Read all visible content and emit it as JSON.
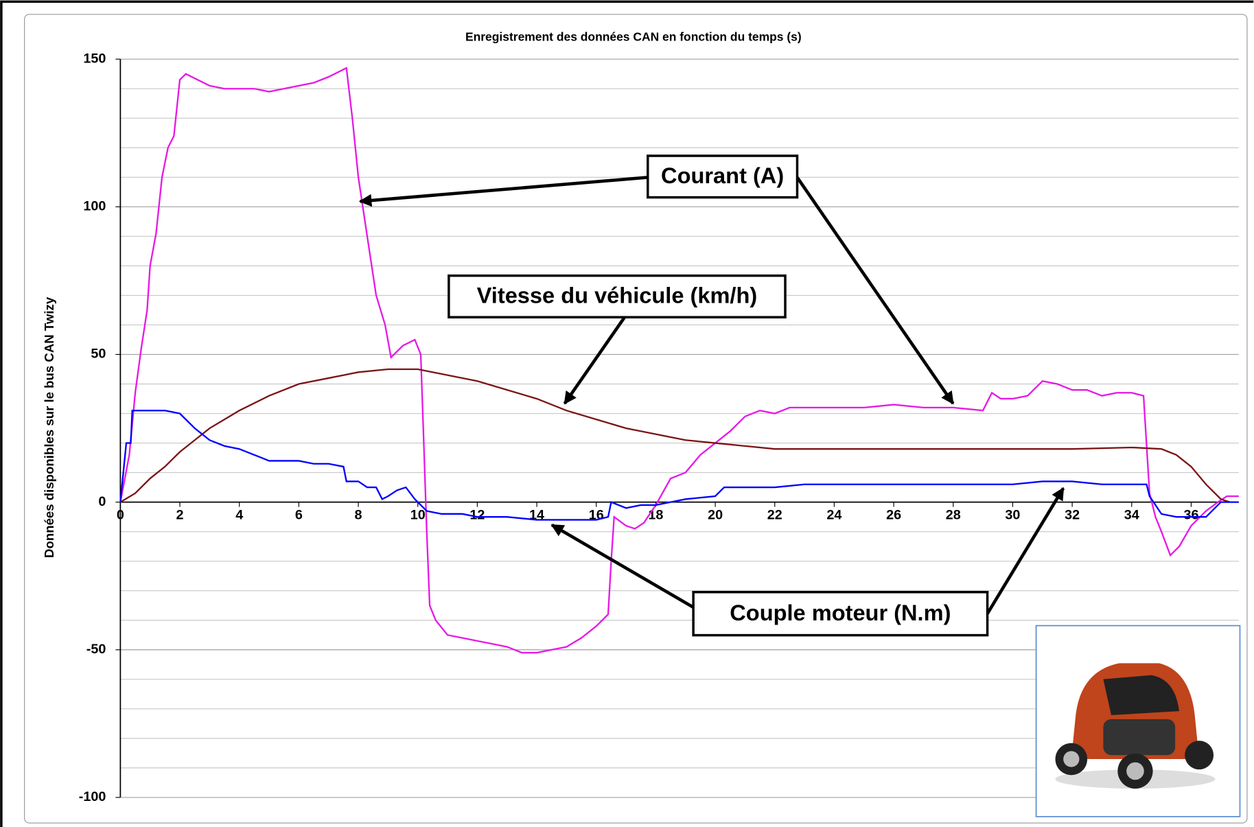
{
  "chart_data": {
    "type": "line",
    "title": "Enregistrement des données CAN en fonction du temps (s)",
    "ylabel": "Données disponibles sur le bus CAN Twizy",
    "xlim": [
      0,
      37.6
    ],
    "ylim": [
      -100,
      150
    ],
    "xticks": [
      0,
      2,
      4,
      6,
      8,
      10,
      12,
      14,
      16,
      18,
      20,
      22,
      24,
      26,
      28,
      30,
      32,
      34,
      36
    ],
    "yticks": [
      -100,
      -50,
      0,
      50,
      100,
      150
    ],
    "minor_yticks": [
      -90,
      -80,
      -70,
      -60,
      -40,
      -30,
      -20,
      -10,
      10,
      20,
      30,
      40,
      60,
      70,
      80,
      90,
      110,
      120,
      130,
      140
    ],
    "grid": true,
    "series": [
      {
        "color": "#e619e6",
        "x": [
          0,
          0.3,
          0.5,
          0.7,
          0.9,
          1.0,
          1.2,
          1.4,
          1.6,
          1.8,
          2.0,
          2.2,
          2.6,
          3.0,
          3.5,
          4,
          4.5,
          5,
          5.5,
          6,
          6.5,
          7,
          7.6,
          7.8,
          8,
          8.3,
          8.6,
          8.9,
          9.1,
          9.5,
          9.9,
          10.1,
          10.2,
          10.3,
          10.4,
          10.6,
          11,
          11.5,
          12,
          12.5,
          13,
          13.5,
          14,
          14.5,
          15,
          15.5,
          16,
          16.4,
          16.5,
          16.6,
          17,
          17.3,
          17.6,
          18,
          18.5,
          19,
          19.5,
          20,
          20.5,
          21,
          21.5,
          22,
          22.5,
          23,
          24,
          25,
          26,
          27,
          28,
          29,
          29.3,
          29.6,
          30,
          30.5,
          31,
          31.5,
          32,
          32.5,
          33,
          33.5,
          34,
          34.4,
          34.6,
          34.8,
          35,
          35.3,
          35.6,
          36,
          36.5,
          36.9,
          37.2,
          37.6
        ],
        "values": [
          0,
          16,
          37,
          52,
          65,
          80,
          91,
          110,
          120,
          124,
          143,
          145,
          143,
          141,
          140,
          140,
          140,
          139,
          140,
          141,
          142,
          144,
          147,
          130,
          110,
          90,
          70,
          60,
          49,
          53,
          55,
          50,
          20,
          -10,
          -35,
          -40,
          -45,
          -46,
          -47,
          -48,
          -49,
          -51,
          -51,
          -50,
          -49,
          -46,
          -42,
          -38,
          -20,
          -5,
          -8,
          -9,
          -7,
          -1,
          8,
          10,
          16,
          20,
          24,
          29,
          31,
          30,
          32,
          32,
          32,
          32,
          33,
          32,
          32,
          31,
          37,
          35,
          35,
          36,
          41,
          40,
          38,
          38,
          36,
          37,
          37,
          36,
          3,
          -5,
          -10,
          -18,
          -15,
          -8,
          -3,
          0,
          2,
          2
        ]
      },
      {
        "color": "#7b1414",
        "x": [
          0,
          0.5,
          1,
          1.5,
          2,
          2.5,
          3,
          4,
          5,
          6,
          7,
          8,
          9,
          10,
          11,
          12,
          13,
          14,
          15,
          16,
          17,
          18,
          19,
          20,
          21,
          22,
          24,
          26,
          28,
          30,
          32,
          34,
          35,
          35.5,
          36,
          36.5,
          37,
          37.3
        ],
        "values": [
          0,
          3,
          8,
          12,
          17,
          21,
          25,
          31,
          36,
          40,
          42,
          44,
          45,
          45,
          43,
          41,
          38,
          35,
          31,
          28,
          25,
          23,
          21,
          20,
          19,
          18,
          18,
          18,
          18,
          18,
          18,
          18.5,
          18,
          16,
          12,
          6,
          1,
          0
        ]
      },
      {
        "color": "#0000ff",
        "x": [
          0,
          0.2,
          0.35,
          0.4,
          1,
          1.5,
          2,
          2.5,
          3,
          3.5,
          4,
          4.5,
          5,
          6,
          6.5,
          7,
          7.5,
          7.6,
          8,
          8.3,
          8.6,
          8.8,
          9,
          9.3,
          9.6,
          9.9,
          10,
          10.3,
          10.8,
          11.5,
          12,
          13,
          14,
          15,
          16,
          16.4,
          16.5,
          17,
          17.5,
          18,
          18.5,
          19,
          20,
          20.3,
          21,
          22,
          23,
          24,
          25,
          26,
          27,
          28,
          29,
          30,
          31,
          32,
          33,
          34,
          34.5,
          34.6,
          35,
          35.5,
          36,
          36.5,
          37,
          37.6
        ],
        "values": [
          0,
          20,
          20,
          31,
          31,
          31,
          30,
          25,
          21,
          19,
          18,
          16,
          14,
          14,
          13,
          13,
          12,
          7,
          7,
          5,
          5,
          1,
          2,
          4,
          5,
          1,
          0,
          -3,
          -4,
          -4,
          -5,
          -5,
          -6,
          -6,
          -6,
          -5,
          0,
          -2,
          -1,
          -1,
          0,
          1,
          2,
          5,
          5,
          5,
          6,
          6,
          6,
          6,
          6,
          6,
          6,
          6,
          7,
          7,
          6,
          6,
          6,
          2,
          -4,
          -5,
          -5,
          -5,
          0,
          0
        ]
      }
    ],
    "annotations": [
      {
        "text": "Courant (A)"
      },
      {
        "text": "Vitesse du véhicule (km/h)"
      },
      {
        "text": "Couple moteur (N.m)"
      }
    ]
  }
}
